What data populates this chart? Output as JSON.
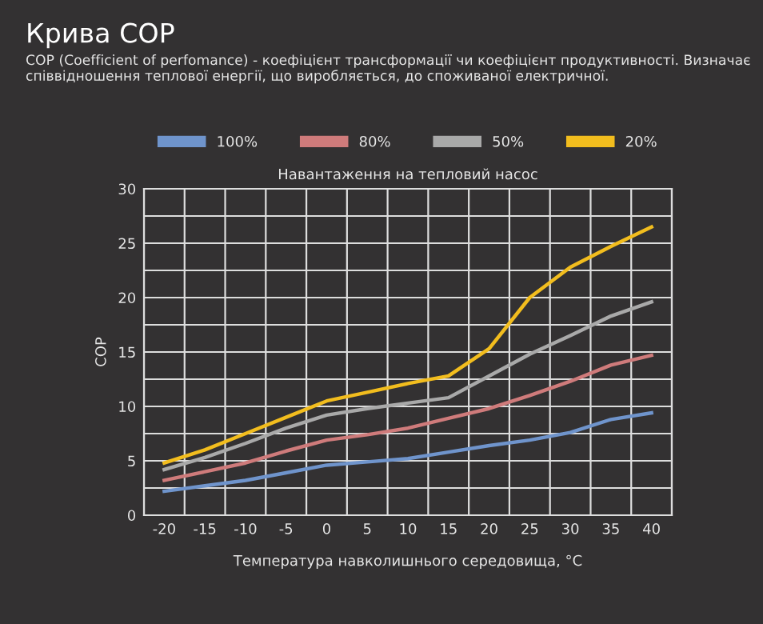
{
  "chart_data": {
    "type": "line",
    "title": "Крива COP",
    "subtitle": "COP (Coefficient of perfomance) - коефіцієнт трансформації чи коефіцієнт продуктивності. Визначає співвідношення теплової енергії, що виробляється, до споживаної електричної.",
    "legend_title": "Навантаження на тепловий насос",
    "xlabel": "Температура навколишнього середовища, °C",
    "ylabel": "COP",
    "categories": [
      "-20",
      "-15",
      "-10",
      "-5",
      "0",
      "5",
      "10",
      "15",
      "20",
      "25",
      "30",
      "35",
      "40"
    ],
    "series": [
      {
        "name": "100%",
        "color": "#6f94cc",
        "values": [
          2.2,
          2.7,
          3.2,
          3.9,
          4.6,
          4.9,
          5.2,
          5.8,
          6.4,
          6.9,
          7.6,
          8.8,
          9.4
        ]
      },
      {
        "name": "80%",
        "color": "#cf7b7b",
        "values": [
          3.2,
          4.0,
          4.8,
          5.9,
          6.9,
          7.4,
          8.0,
          8.9,
          9.8,
          11.0,
          12.3,
          13.8,
          14.7
        ]
      },
      {
        "name": "50%",
        "color": "#a9a9a9",
        "values": [
          4.2,
          5.3,
          6.6,
          8.0,
          9.2,
          9.8,
          10.3,
          10.8,
          12.8,
          14.8,
          16.5,
          18.3,
          19.6
        ]
      },
      {
        "name": "20%",
        "color": "#f2bd1e",
        "values": [
          4.8,
          6.0,
          7.5,
          9.0,
          10.5,
          11.3,
          12.1,
          12.8,
          15.3,
          20.0,
          22.8,
          24.7,
          26.5
        ]
      }
    ],
    "ylim": [
      0,
      30
    ],
    "yticks": [
      0,
      5,
      10,
      15,
      20,
      25,
      30
    ],
    "grid": true,
    "legend": "top",
    "marker": "none",
    "line_style": "solid"
  }
}
